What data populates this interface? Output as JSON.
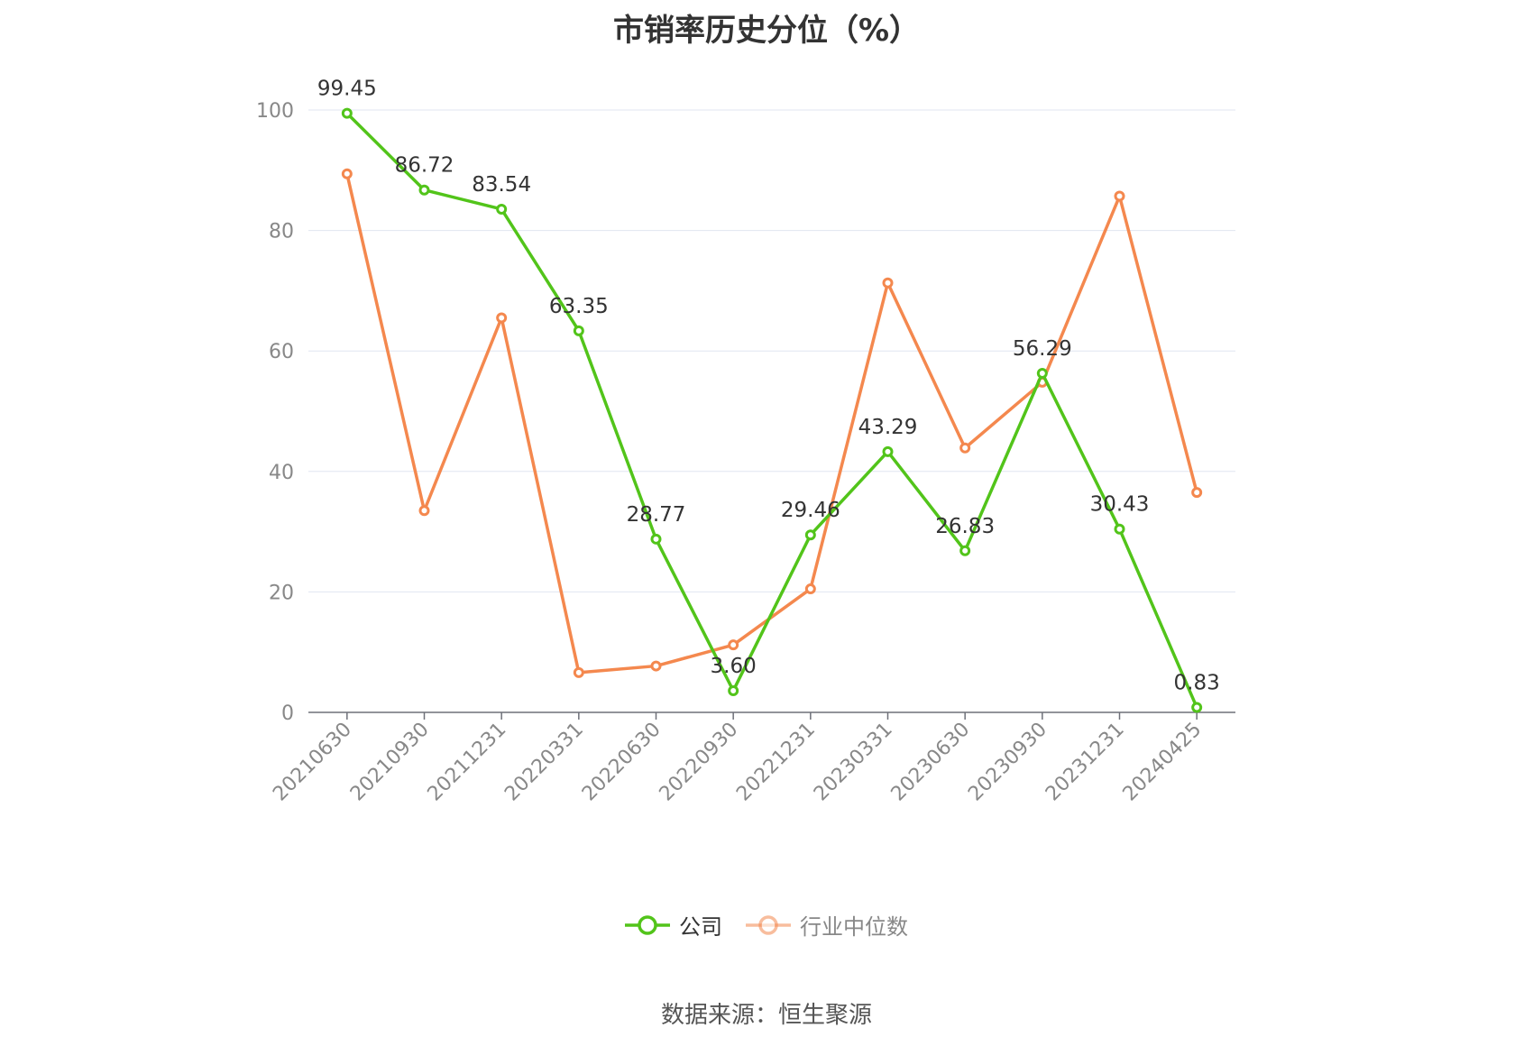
{
  "source_text": "数据来源：恒生聚源",
  "chart_data": {
    "type": "line",
    "title": "市销率历史分位（%）",
    "categories": [
      "20210630",
      "20210930",
      "20211231",
      "20220331",
      "20220630",
      "20220930",
      "20221231",
      "20230331",
      "20230630",
      "20230930",
      "20231231",
      "20240425"
    ],
    "series": [
      {
        "name": "公司",
        "color": "#52c41a",
        "values": [
          99.45,
          86.72,
          83.54,
          63.35,
          28.77,
          3.6,
          29.46,
          43.29,
          26.83,
          56.29,
          30.43,
          0.83
        ],
        "labels": [
          "99.45",
          "86.72",
          "83.54",
          "63.35",
          "28.77",
          "3.60",
          "29.46",
          "43.29",
          "26.83",
          "56.29",
          "30.43",
          "0.83"
        ]
      },
      {
        "name": "行业中位数",
        "color": "#f4884e",
        "values": [
          89.4,
          33.5,
          65.5,
          6.6,
          7.7,
          11.2,
          20.5,
          71.3,
          43.9,
          54.8,
          85.7,
          36.5
        ]
      }
    ],
    "ylim": [
      0,
      100
    ],
    "yticks": [
      0,
      20,
      40,
      60,
      80,
      100
    ],
    "grid": true,
    "legend_position": "bottom"
  }
}
